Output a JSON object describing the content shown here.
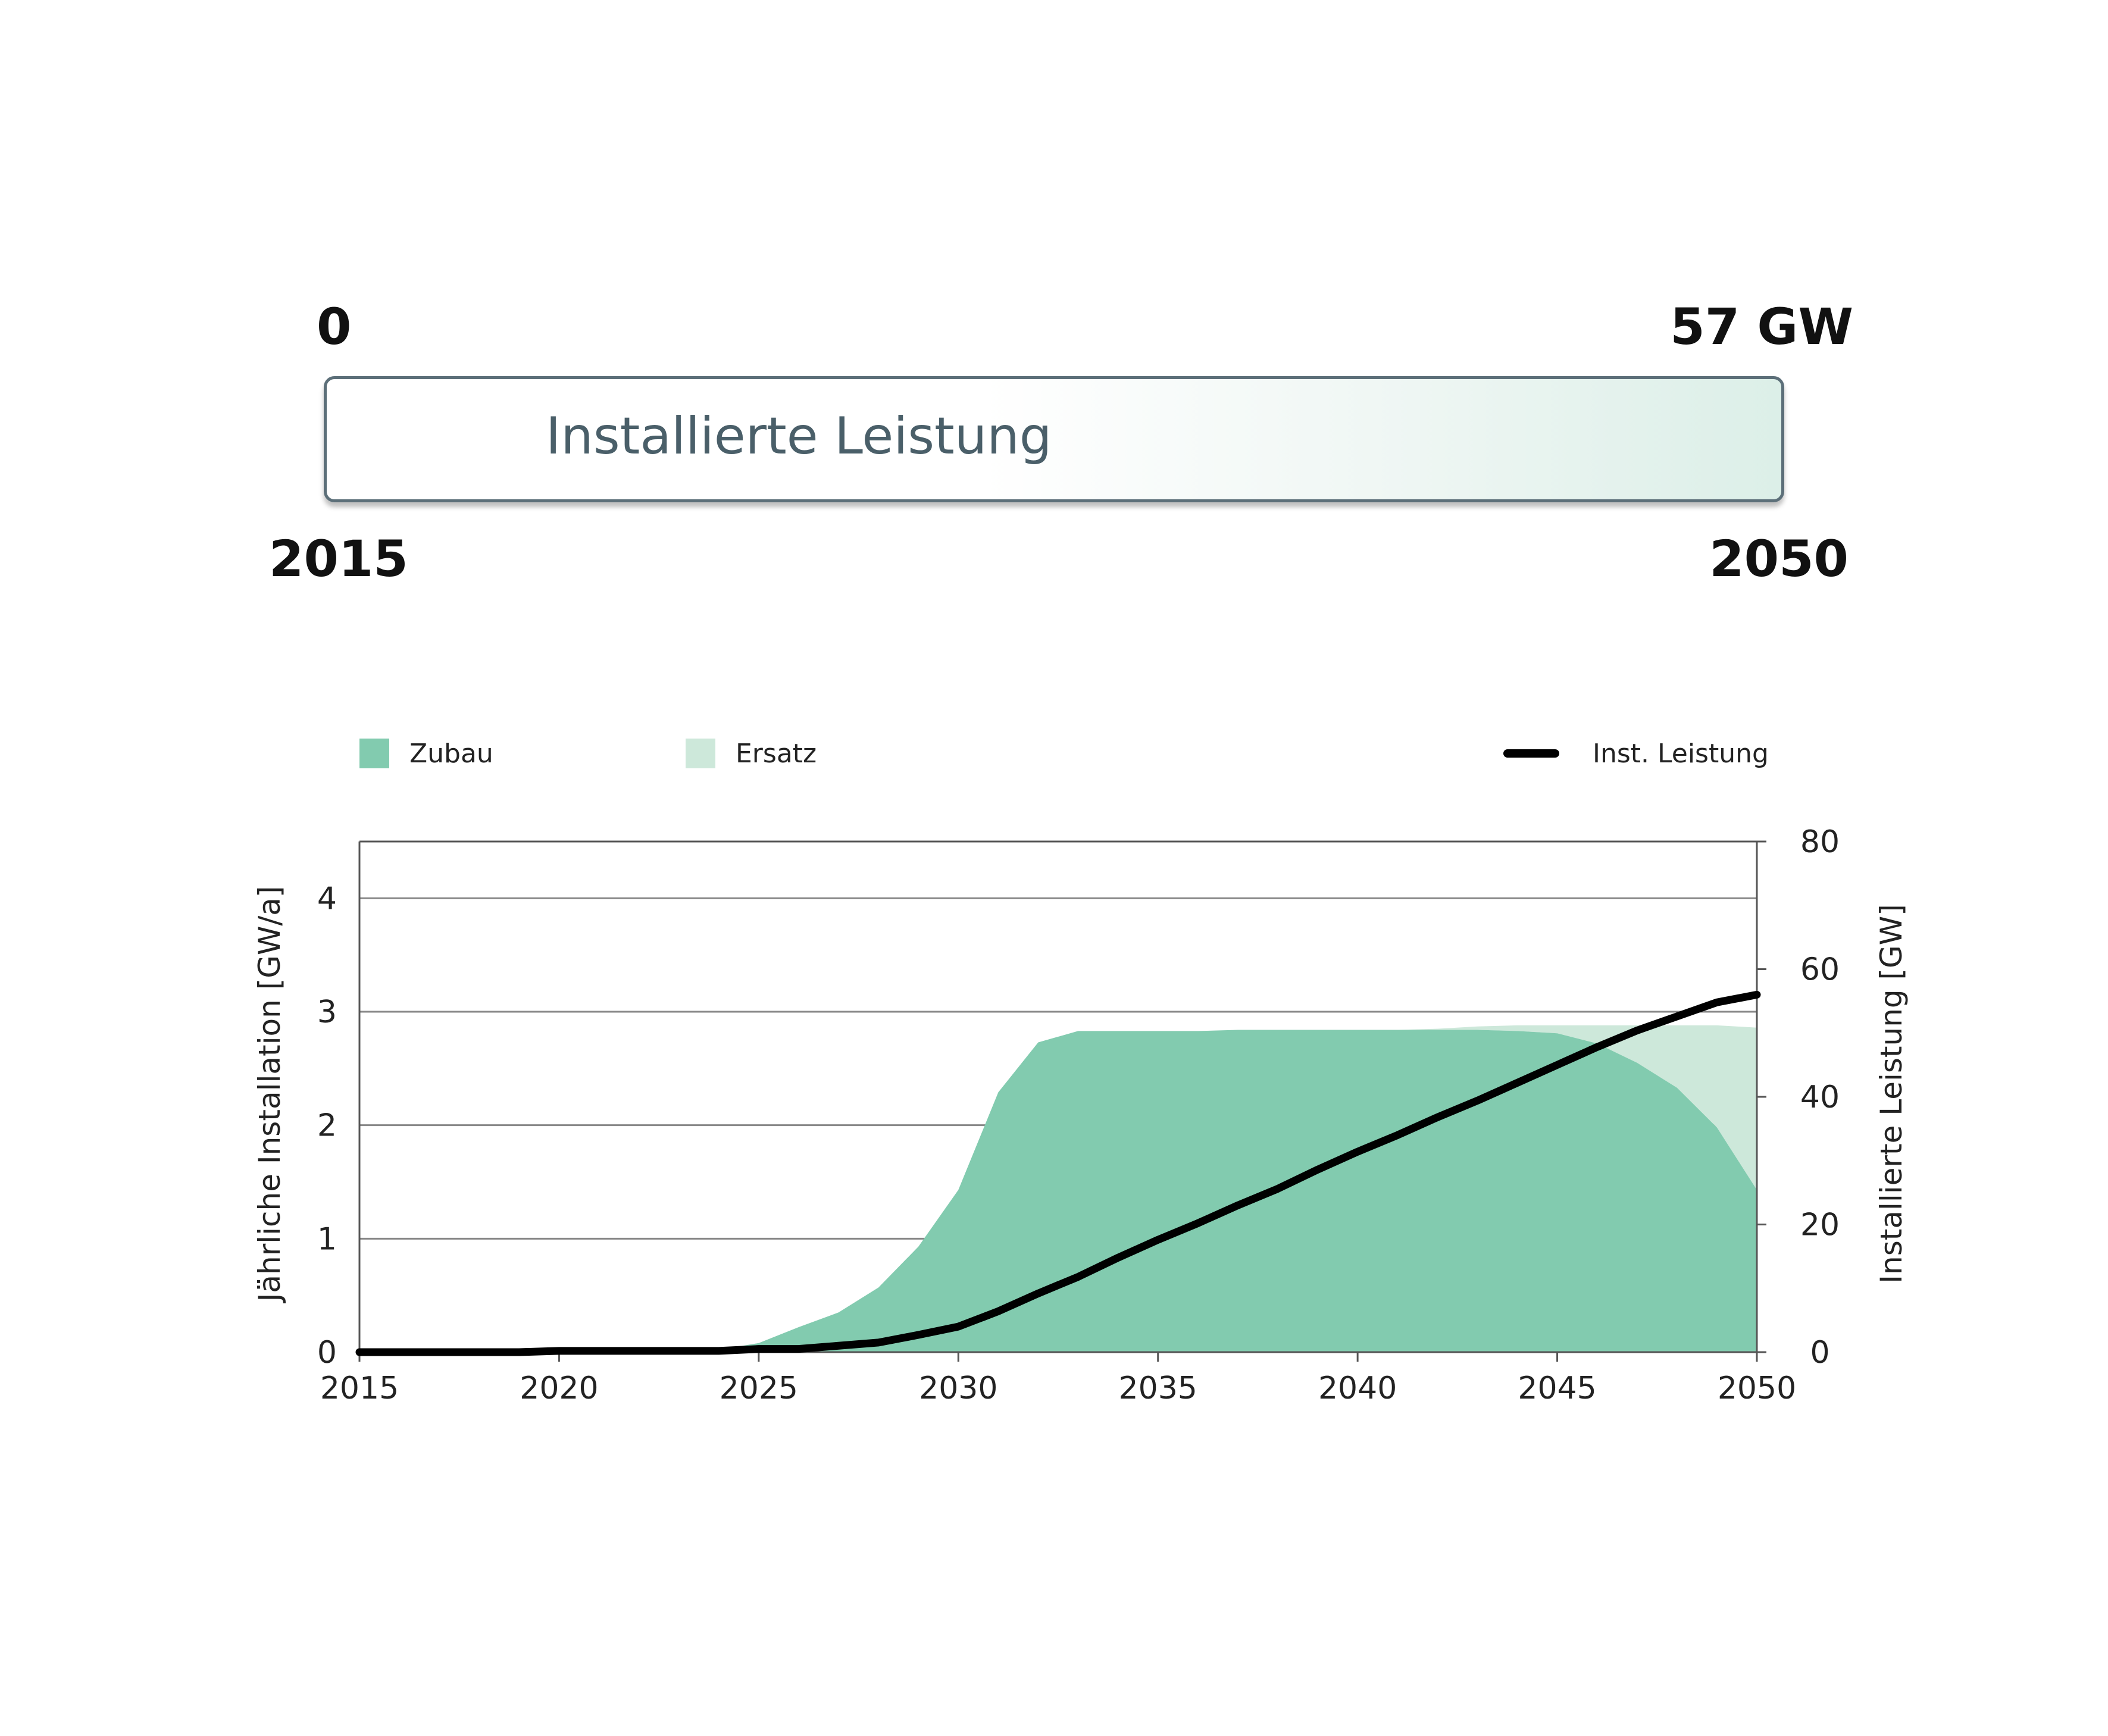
{
  "scale": {
    "min_label": "0",
    "max_label": "57 GW",
    "bar_label": "Installierte Leistung",
    "start_year": "2015",
    "end_year": "2050"
  },
  "legend": {
    "zubau": "Zubau",
    "ersatz": "Ersatz",
    "inst": "Inst.  Leistung"
  },
  "colors": {
    "zubau": "#82cbaf",
    "ersatz": "#cde8da",
    "inst_line": "#000000",
    "grid": "#888888"
  },
  "chart_data": {
    "type": "area",
    "xlabel": "",
    "ylabel": "Jährliche Installation [GW/a]",
    "y2label": "Installierte Leistung [GW]",
    "xlim": [
      2015,
      2050
    ],
    "ylim": [
      0,
      4.5
    ],
    "y2lim": [
      0,
      80
    ],
    "xticks": [
      2015,
      2020,
      2025,
      2030,
      2035,
      2040,
      2045,
      2050
    ],
    "yticks": [
      0,
      1,
      2,
      3,
      4
    ],
    "y2ticks": [
      0,
      20,
      40,
      60,
      80
    ],
    "grid": "horizontal",
    "x": [
      2015,
      2016,
      2017,
      2018,
      2019,
      2020,
      2021,
      2022,
      2023,
      2024,
      2025,
      2026,
      2027,
      2028,
      2029,
      2030,
      2031,
      2032,
      2033,
      2034,
      2035,
      2036,
      2037,
      2038,
      2039,
      2040,
      2041,
      2042,
      2043,
      2044,
      2045,
      2046,
      2047,
      2048,
      2049,
      2050
    ],
    "series": [
      {
        "name": "Zubau",
        "axis": "left",
        "type": "area",
        "values": [
          0,
          0,
          0,
          0,
          0,
          0,
          0,
          0,
          0.01,
          0.02,
          0.08,
          0.22,
          0.35,
          0.57,
          0.93,
          1.43,
          2.29,
          2.73,
          2.83,
          2.83,
          2.83,
          2.83,
          2.84,
          2.84,
          2.84,
          2.84,
          2.84,
          2.84,
          2.84,
          2.83,
          2.81,
          2.72,
          2.55,
          2.33,
          1.98,
          1.43
        ]
      },
      {
        "name": "Ersatz",
        "axis": "left",
        "type": "area-stacked",
        "values": [
          0,
          0,
          0,
          0,
          0,
          0,
          0,
          0,
          0,
          0,
          0,
          0,
          0,
          0,
          0,
          0,
          0,
          0,
          0,
          0,
          0,
          0,
          0,
          0,
          0,
          0,
          0,
          0.01,
          0.03,
          0.05,
          0.07,
          0.16,
          0.33,
          0.55,
          0.9,
          1.43
        ]
      },
      {
        "name": "Inst.  Leistung",
        "axis": "right",
        "type": "line",
        "values": [
          0,
          0,
          0,
          0,
          0,
          0.2,
          0.2,
          0.2,
          0.2,
          0.2,
          0.5,
          0.5,
          1.0,
          1.5,
          2.7,
          4.0,
          6.4,
          9.2,
          11.8,
          14.8,
          17.6,
          20.2,
          23.0,
          25.6,
          28.6,
          31.4,
          34.0,
          36.8,
          39.4,
          42.2,
          45.0,
          47.8,
          50.4,
          52.6,
          54.8,
          56.0
        ]
      }
    ]
  }
}
